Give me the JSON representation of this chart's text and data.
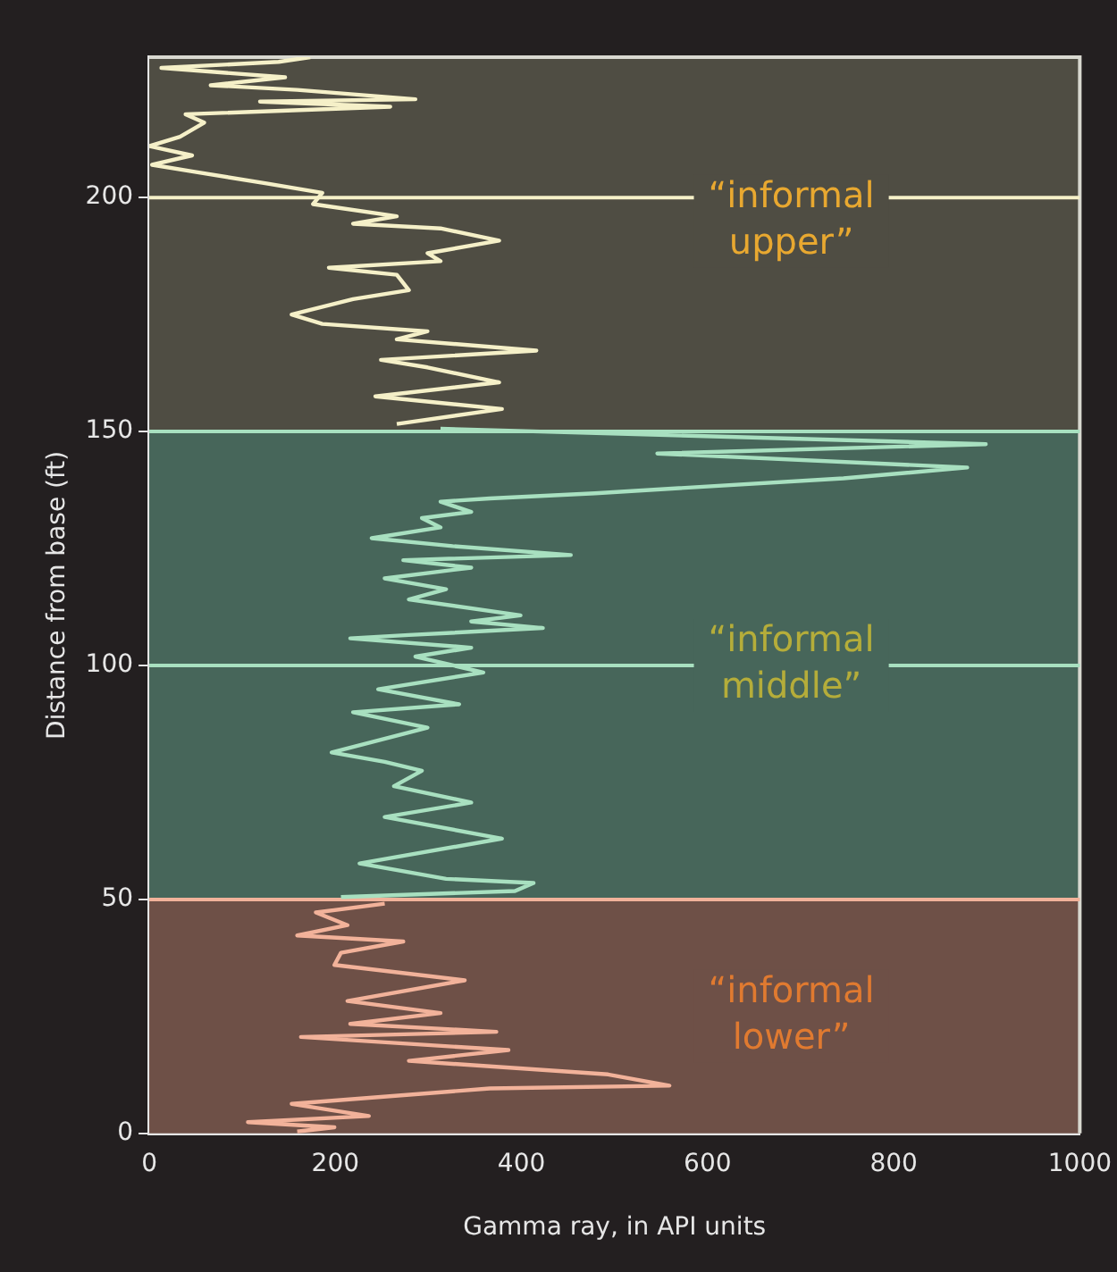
{
  "chart_data": {
    "type": "line",
    "xlabel": "Gamma ray, in API units",
    "ylabel": "Distance from base (ft)",
    "xlim": [
      0,
      1000
    ],
    "xticks": [
      0,
      200,
      400,
      600,
      800,
      1000
    ],
    "ylim": [
      0,
      230
    ],
    "yticks": [
      0,
      50,
      100,
      150,
      200
    ],
    "legend": false,
    "marker": "none",
    "line_style": "solid",
    "series": [
      {
        "color": "#f5f0c8",
        "x": [
          173,
          139,
          13,
          146,
          66,
          159,
          286,
          119,
          259,
          39,
          59,
          33,
          0,
          46,
          3,
          46,
          126,
          186,
          176,
          266,
          219,
          313,
          376,
          299,
          313,
          193,
          266,
          279,
          219,
          153,
          186,
          299,
          266,
          416,
          249,
          299,
          376,
          243,
          379,
          266
        ],
        "values": [
          230,
          229,
          227.7,
          225.7,
          224,
          223,
          221,
          220.5,
          219.4,
          217.8,
          216,
          213,
          211,
          209,
          207,
          205.6,
          203,
          201,
          198.6,
          196,
          194.4,
          193.4,
          190.8,
          188.1,
          186.4,
          185,
          183.5,
          180.2,
          178.3,
          175,
          173,
          171.4,
          169.7,
          167.3,
          165.3,
          163.7,
          160.5,
          157.5,
          154.8,
          151.6
        ]
      },
      {
        "color": "#a8e0c0",
        "x": [
          313,
          899,
          546,
          879,
          746,
          479,
          366,
          313,
          346,
          293,
          313,
          239,
          326,
          453,
          273,
          346,
          253,
          319,
          279,
          399,
          346,
          423,
          279,
          216,
          346,
          286,
          359,
          246,
          333,
          219,
          299,
          196,
          253,
          293,
          263,
          346,
          253,
          379,
          226,
          319,
          413,
          393,
          206
        ],
        "values": [
          150.6,
          147.3,
          145.3,
          142.3,
          140,
          136.8,
          135.7,
          135,
          132.8,
          131.5,
          129.5,
          127.2,
          125.5,
          123.6,
          122.5,
          120.9,
          118.6,
          116.3,
          114.1,
          110.7,
          109.4,
          108,
          106.5,
          105.8,
          103.8,
          101.9,
          98.5,
          94.9,
          91.7,
          90,
          86.7,
          81.4,
          79.4,
          77.5,
          74.2,
          70.7,
          67.6,
          63,
          57.7,
          54.4,
          53.5,
          51.8,
          50.5
        ]
      },
      {
        "color": "#f2b29a",
        "x": [
          253,
          179,
          213,
          159,
          273,
          206,
          199,
          339,
          213,
          313,
          216,
          373,
          163,
          386,
          279,
          493,
          559,
          366,
          153,
          236,
          106,
          199,
          159
        ],
        "values": [
          49.1,
          47.2,
          44.5,
          42.3,
          41,
          38.6,
          36,
          32.7,
          28.3,
          25.7,
          23.4,
          21.7,
          20.6,
          17.8,
          15.5,
          12.6,
          10.2,
          9.6,
          6.3,
          3.7,
          2.4,
          1.3,
          0.4
        ]
      }
    ],
    "bands": [
      {
        "axis": "y",
        "from": 150,
        "to": 230,
        "label": "“informal upper”",
        "color": "#4f4d43"
      },
      {
        "axis": "y",
        "from": 50,
        "to": 150,
        "label": "“informal middle”",
        "color": "#47665a"
      },
      {
        "axis": "y",
        "from": 0,
        "to": 50,
        "label": "“informal lower”",
        "color": "#6e5047"
      }
    ],
    "ref_lines": [
      {
        "axis": "y",
        "value": 200,
        "color": "#f5f0c8"
      },
      {
        "axis": "y",
        "value": 100,
        "color": "#a8e0c0"
      },
      {
        "axis": "y",
        "value": 150,
        "color": "#a8e0c0"
      },
      {
        "axis": "y",
        "value": 50,
        "color": "#f2b29a"
      }
    ]
  }
}
